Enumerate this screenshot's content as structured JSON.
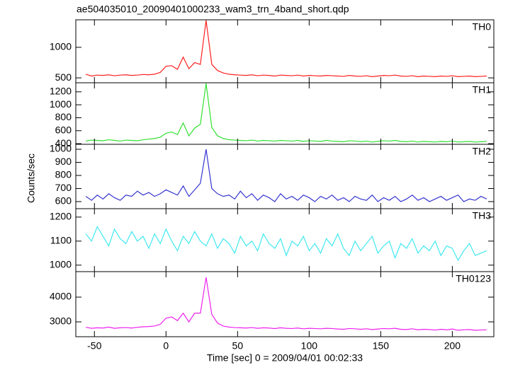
{
  "figure": {
    "title": "ae504035010_20090401000233_wam3_trn_4band_short.qdp",
    "x_label": "Time [sec] 0 = 2009/04/01 00:02:33",
    "y_label": "Counts/sec",
    "xlim": [
      -63,
      229
    ],
    "xticks": [
      -50,
      0,
      50,
      100,
      150,
      200
    ],
    "x": [
      -56,
      -52,
      -48,
      -44,
      -40,
      -36,
      -32,
      -28,
      -24,
      -20,
      -16,
      -12,
      -8,
      -4,
      0,
      4,
      8,
      12,
      16,
      20,
      24,
      28,
      32,
      36,
      40,
      44,
      48,
      52,
      56,
      60,
      64,
      68,
      72,
      76,
      80,
      84,
      88,
      92,
      96,
      100,
      104,
      108,
      112,
      116,
      120,
      124,
      128,
      132,
      136,
      140,
      144,
      148,
      152,
      156,
      160,
      164,
      168,
      172,
      176,
      180,
      184,
      188,
      192,
      196,
      200,
      204,
      208,
      212,
      216,
      220,
      224
    ]
  },
  "chart_data": [
    {
      "type": "line",
      "label": "TH0",
      "color": "#ff2020",
      "ylim": [
        420,
        1450
      ],
      "yticks": [
        500,
        1000
      ],
      "values": [
        560,
        530,
        545,
        540,
        550,
        535,
        545,
        550,
        540,
        545,
        555,
        550,
        560,
        590,
        690,
        700,
        640,
        840,
        650,
        750,
        720,
        1440,
        720,
        620,
        580,
        560,
        550,
        545,
        540,
        550,
        535,
        545,
        540,
        530,
        545,
        540,
        535,
        545,
        530,
        540,
        535,
        530,
        540,
        535,
        530,
        525,
        540,
        530,
        525,
        535,
        520,
        530,
        540,
        535,
        545,
        530,
        525,
        535,
        520,
        530,
        525,
        520,
        530,
        525,
        535,
        520,
        525,
        530,
        520,
        525,
        530
      ]
    },
    {
      "type": "line",
      "label": "TH1",
      "color": "#30e030",
      "ylim": [
        390,
        1340
      ],
      "yticks": [
        400,
        600,
        800,
        1000,
        1200
      ],
      "values": [
        440,
        455,
        450,
        445,
        460,
        450,
        440,
        455,
        450,
        445,
        460,
        470,
        480,
        500,
        560,
        580,
        540,
        720,
        520,
        640,
        700,
        1330,
        650,
        520,
        480,
        460,
        455,
        450,
        445,
        455,
        440,
        450,
        445,
        440,
        450,
        445,
        440,
        450,
        435,
        445,
        440,
        435,
        450,
        440,
        435,
        430,
        445,
        440,
        430,
        440,
        425,
        435,
        445,
        440,
        450,
        435,
        430,
        440,
        425,
        435,
        430,
        425,
        435,
        430,
        440,
        425,
        430,
        435,
        425,
        430,
        435
      ]
    },
    {
      "type": "line",
      "label": "TH2",
      "color": "#3535d0",
      "ylim": [
        546,
        1038
      ],
      "yticks": [
        600,
        700,
        800,
        900,
        1000
      ],
      "values": [
        640,
        610,
        650,
        620,
        660,
        630,
        610,
        650,
        640,
        680,
        650,
        670,
        640,
        660,
        690,
        670,
        650,
        720,
        640,
        690,
        740,
        1000,
        700,
        660,
        640,
        650,
        620,
        680,
        630,
        660,
        610,
        650,
        630,
        600,
        660,
        620,
        640,
        610,
        650,
        630,
        600,
        640,
        620,
        650,
        610,
        630,
        600,
        640,
        620,
        610,
        650,
        600,
        630,
        610,
        640,
        600,
        620,
        650,
        610,
        630,
        600,
        620,
        640,
        610,
        630,
        650,
        600,
        620,
        610,
        640,
        620
      ]
    },
    {
      "type": "line",
      "label": "TH3",
      "color": "#40e8f0",
      "ylim": [
        973,
        1235
      ],
      "yticks": [
        1000,
        1100,
        1200
      ],
      "values": [
        1130,
        1100,
        1160,
        1120,
        1080,
        1150,
        1110,
        1090,
        1140,
        1100,
        1120,
        1070,
        1130,
        1090,
        1150,
        1100,
        1060,
        1120,
        1090,
        1140,
        1100,
        1080,
        1130,
        1070,
        1110,
        1090,
        1050,
        1120,
        1080,
        1100,
        1060,
        1130,
        1090,
        1070,
        1110,
        1040,
        1100,
        1080,
        1120,
        1060,
        1090,
        1050,
        1110,
        1080,
        1130,
        1070,
        1040,
        1100,
        1060,
        1090,
        1120,
        1050,
        1080,
        1100,
        1030,
        1090,
        1070,
        1110,
        1050,
        1080,
        1060,
        1100,
        1040,
        1080,
        1070,
        1020,
        1060,
        1090,
        1040,
        1050,
        1060
      ]
    },
    {
      "type": "line",
      "label": "TH0123",
      "color": "#ee22ee",
      "ylim": [
        2400,
        5030
      ],
      "yticks": [
        3000,
        4000
      ],
      "values": [
        2780,
        2740,
        2760,
        2750,
        2790,
        2740,
        2760,
        2770,
        2750,
        2780,
        2800,
        2810,
        2830,
        2900,
        3150,
        3200,
        3050,
        3350,
        3000,
        3350,
        3350,
        4800,
        3300,
        2950,
        2830,
        2790,
        2770,
        2760,
        2750,
        2770,
        2740,
        2760,
        2750,
        2730,
        2760,
        2740,
        2730,
        2750,
        2720,
        2740,
        2730,
        2720,
        2740,
        2730,
        2710,
        2700,
        2730,
        2720,
        2700,
        2720,
        2690,
        2710,
        2730,
        2720,
        2740,
        2700,
        2690,
        2720,
        2680,
        2700,
        2690,
        2670,
        2700,
        2680,
        2710,
        2660,
        2680,
        2690,
        2660,
        2670,
        2680
      ]
    }
  ]
}
